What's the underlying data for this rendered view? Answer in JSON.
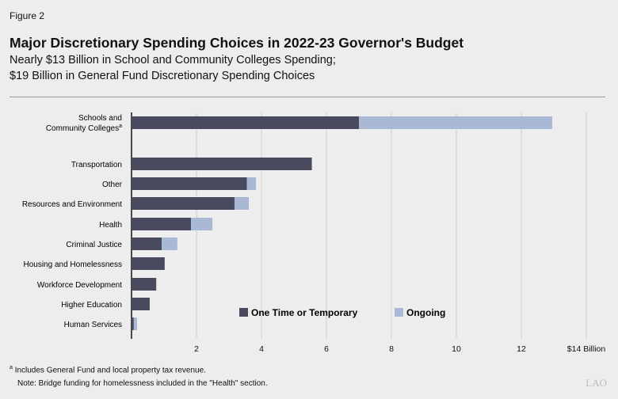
{
  "figure_label": "Figure 2",
  "chart_data": {
    "type": "bar",
    "orientation": "horizontal",
    "stacked": true,
    "title": "Major Discretionary Spending Choices in 2022-23 Governor's Budget",
    "subtitle": [
      "Nearly $13 Billion in School and Community Colleges Spending;",
      "$19 Billion in General Fund Discretionary Spending Choices"
    ],
    "categories": [
      "Schools and Community Colleges",
      "Transportation",
      "Other",
      "Resources and Environment",
      "Health",
      "Criminal Justice",
      "Housing and Homelessness",
      "Workforce Development",
      "Higher Education",
      "Human Services"
    ],
    "category_superscripts": {
      "0": "a"
    },
    "series": [
      {
        "name": "One Time or Temporary",
        "color": "#4a4a5e",
        "values": [
          7.0,
          5.55,
          3.55,
          3.17,
          1.83,
          0.93,
          1.02,
          0.76,
          0.56,
          0.07
        ]
      },
      {
        "name": "Ongoing",
        "color": "#a9b8d4",
        "values": [
          5.95,
          0,
          0.28,
          0.44,
          0.66,
          0.48,
          0,
          0,
          0,
          0.1
        ]
      }
    ],
    "xlim": [
      0,
      14
    ],
    "xticks": [
      "2",
      "4",
      "6",
      "8",
      "10",
      "12",
      "$14 Billion"
    ],
    "grid": "vertical",
    "legend": "bottom-right"
  },
  "footnotes": [
    "Includes General Fund and local property tax revenue.",
    "Note: Bridge funding for homelessness included in the \"Health\" section."
  ],
  "footnote_marker": "a",
  "logo": "LAO"
}
